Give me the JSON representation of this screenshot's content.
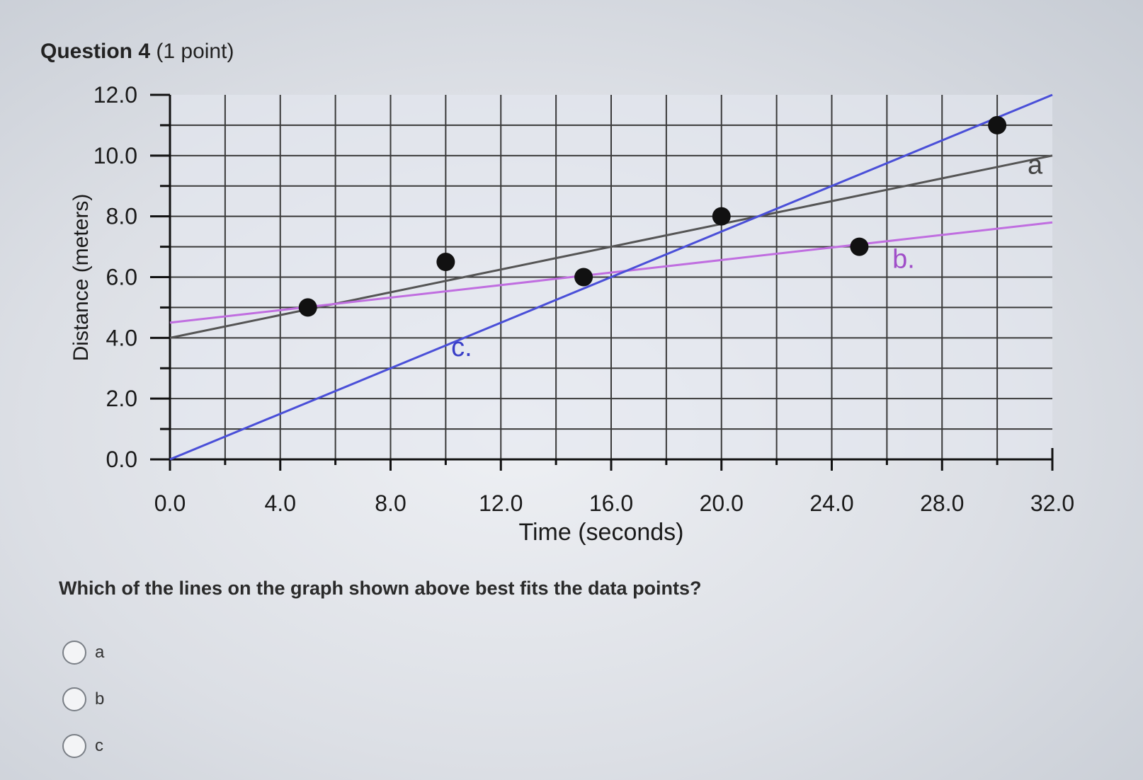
{
  "question": {
    "title": "Question 4",
    "points": "(1 point)",
    "prompt": "Which of the lines on the graph shown above best fits the data points?",
    "options": [
      {
        "label": "a"
      },
      {
        "label": "b"
      },
      {
        "label": "c"
      }
    ]
  },
  "chart_data": {
    "type": "scatter",
    "xlabel": "Time (seconds)",
    "ylabel": "Distance (meters)",
    "xlim": [
      0,
      32
    ],
    "ylim": [
      0,
      12
    ],
    "x_ticks": [
      "0.0",
      "4.0",
      "8.0",
      "12.0",
      "16.0",
      "20.0",
      "24.0",
      "28.0",
      "32.0"
    ],
    "y_ticks": [
      "0.0",
      "2.0",
      "4.0",
      "6.0",
      "8.0",
      "10.0",
      "12.0"
    ],
    "grid": true,
    "points": [
      {
        "x": 5,
        "y": 5.0
      },
      {
        "x": 10,
        "y": 6.5
      },
      {
        "x": 15,
        "y": 6.0
      },
      {
        "x": 20,
        "y": 8.0
      },
      {
        "x": 25,
        "y": 7.0
      },
      {
        "x": 30,
        "y": 11.0
      }
    ],
    "lines": [
      {
        "name": "a",
        "x": [
          0,
          32
        ],
        "y": [
          4.0,
          10.0
        ],
        "color": "#555555"
      },
      {
        "name": "b",
        "x": [
          0,
          32
        ],
        "y": [
          4.5,
          7.8
        ],
        "color": "#c06ee0"
      },
      {
        "name": "c",
        "x": [
          0,
          32
        ],
        "y": [
          0.0,
          12.0
        ],
        "color": "#4a4fd8"
      }
    ],
    "line_labels": [
      {
        "name": "a",
        "text": "a",
        "x": 31.1,
        "y": 9.4,
        "color": "#444444"
      },
      {
        "name": "b",
        "text": "b.",
        "x": 26.2,
        "y": 6.3,
        "color": "#a04ec8"
      },
      {
        "name": "c",
        "text": "c.",
        "x": 10.2,
        "y": 3.4,
        "color": "#3a3fc8"
      }
    ]
  }
}
